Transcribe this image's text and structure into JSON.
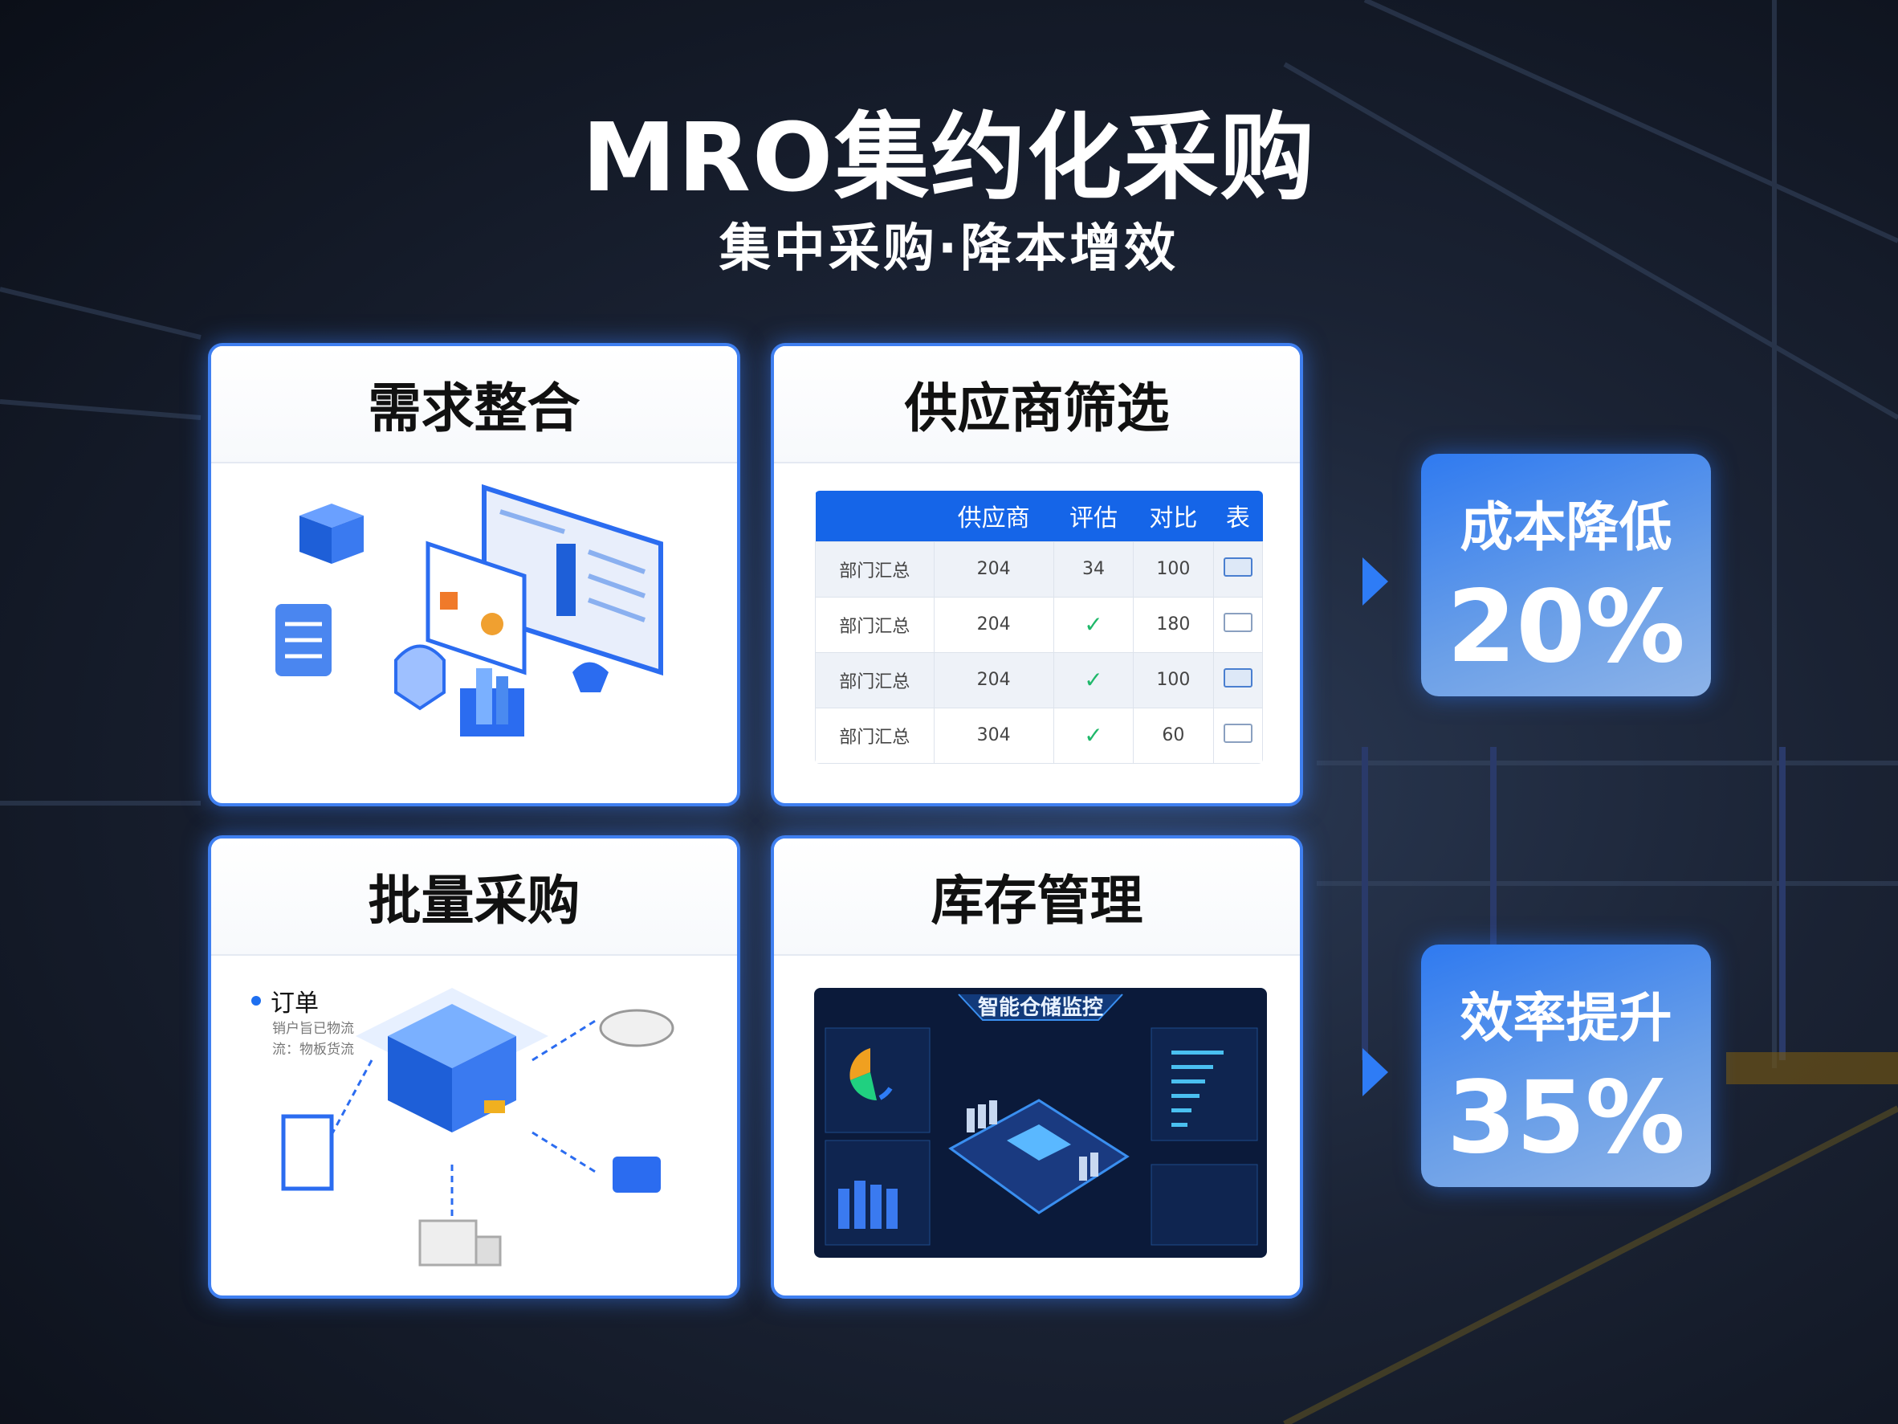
{
  "header": {
    "title": "MRO集约化采购",
    "subtitle": "集中采购·降本增效"
  },
  "cards": [
    {
      "title": "需求整合"
    },
    {
      "title": "供应商筛选",
      "table": {
        "headers": [
          "",
          "供应商",
          "评估",
          "对比",
          "表"
        ],
        "rows": [
          {
            "name": "部门汇总",
            "supplier": "204",
            "eval": "34",
            "compare": "100",
            "checkbox": "highlighted"
          },
          {
            "name": "部门汇总",
            "supplier": "204",
            "eval": "✓",
            "compare": "180",
            "checkbox": "empty"
          },
          {
            "name": "部门汇总",
            "supplier": "204",
            "eval": "✓",
            "compare": "100",
            "checkbox": "highlighted"
          },
          {
            "name": "部门汇总",
            "supplier": "304",
            "eval": "✓",
            "compare": "60",
            "checkbox": "empty"
          }
        ]
      }
    },
    {
      "title": "批量采购",
      "order": {
        "label": "订单",
        "lines": [
          "销户旨已物流",
          "流：物板货流"
        ]
      }
    },
    {
      "title": "库存管理",
      "dashboard": {
        "title": "智能仓储监控"
      }
    }
  ],
  "stats": [
    {
      "label": "成本降低",
      "value": "20%"
    },
    {
      "label": "效率提升",
      "value": "35%"
    }
  ],
  "colors": {
    "accent": "#1565e8",
    "check": "#1fb86a",
    "background": "#1a2233"
  }
}
